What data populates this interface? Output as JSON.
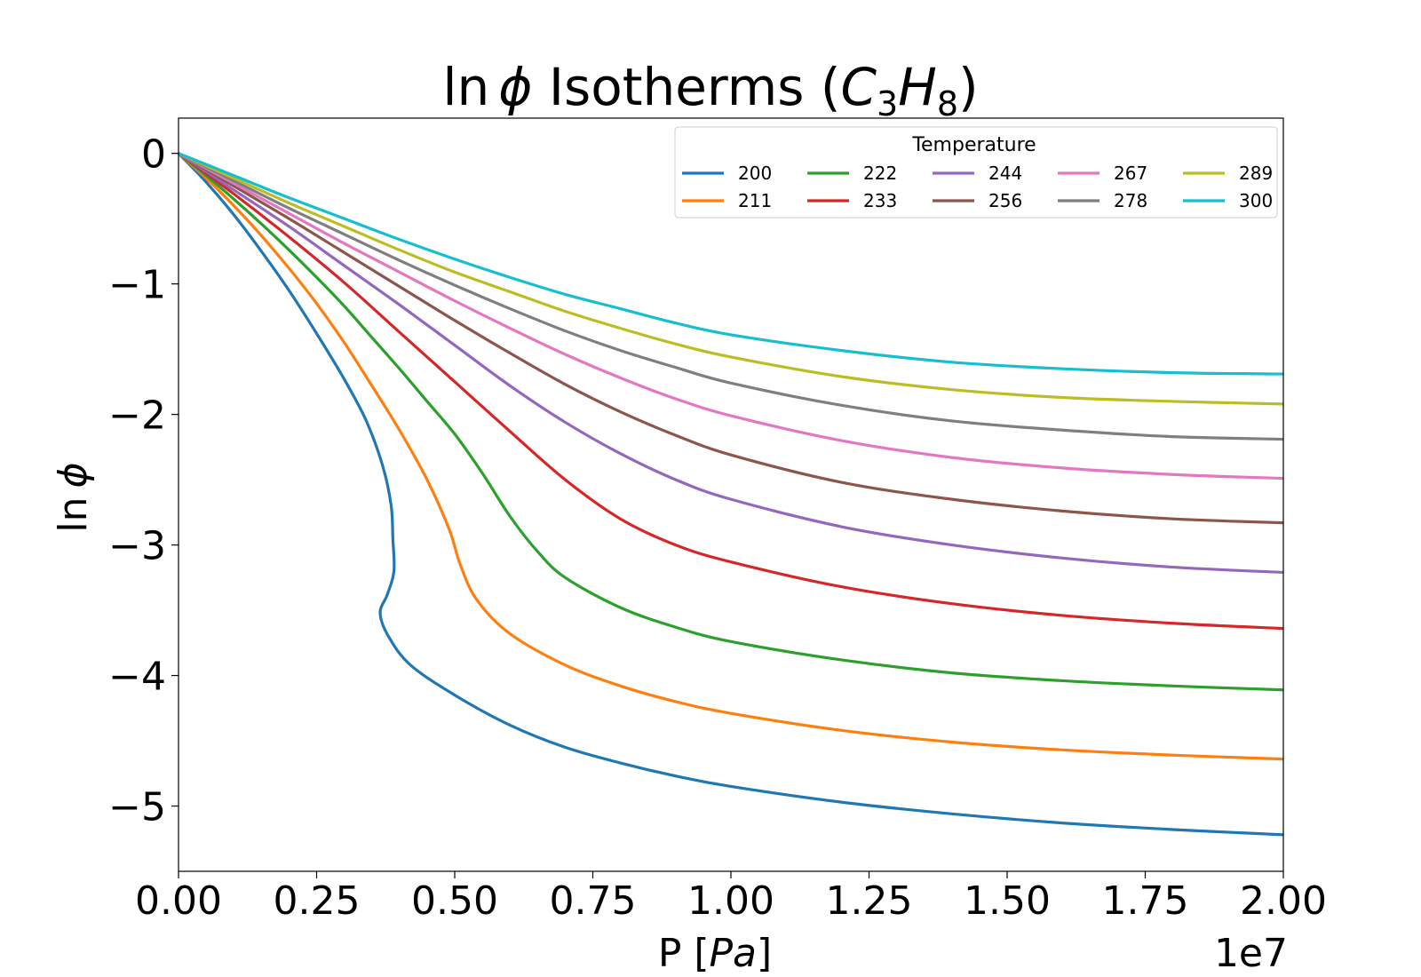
{
  "chart_data": {
    "type": "line",
    "title": "ln ϕ Isotherms (C3H8)",
    "title_parts": {
      "prefix": "ln",
      "phi": "ϕ",
      "middle": " Isotherms (",
      "c": "C",
      "sub3": "3",
      "h": "H",
      "sub8": "8",
      "suffix": ")"
    },
    "xlabel": "P [Pa]",
    "xlabel_parts": {
      "prefix": "P [",
      "unit": "Pa",
      "suffix": "]"
    },
    "ylabel": "ln ϕ",
    "ylabel_parts": {
      "prefix": "ln",
      "phi": "ϕ"
    },
    "x_offset_label": "1e7",
    "xlim": [
      0,
      20000000
    ],
    "ylim": [
      -5.5,
      0.27
    ],
    "x_ticks": [
      0,
      2500000,
      5000000,
      7500000,
      10000000,
      12500000,
      15000000,
      17500000,
      20000000
    ],
    "x_tick_labels": [
      "0.00",
      "0.25",
      "0.50",
      "0.75",
      "1.00",
      "1.25",
      "1.50",
      "1.75",
      "2.00"
    ],
    "y_ticks": [
      0,
      -1,
      -2,
      -3,
      -4,
      -5
    ],
    "y_tick_labels": [
      "0",
      "−1",
      "−2",
      "−3",
      "−4",
      "−5"
    ],
    "grid": false,
    "legend": {
      "title": "Temperature",
      "placement": "top-right",
      "columns": 5
    },
    "series": [
      {
        "name": "200",
        "color": "#1f77b4",
        "points": [
          [
            0,
            0
          ],
          [
            500000,
            -0.22
          ],
          [
            1000000,
            -0.47
          ],
          [
            1500000,
            -0.75
          ],
          [
            2000000,
            -1.05
          ],
          [
            2500000,
            -1.38
          ],
          [
            3000000,
            -1.73
          ],
          [
            3400000,
            -2.05
          ],
          [
            3700000,
            -2.4
          ],
          [
            3850000,
            -2.7
          ],
          [
            3880000,
            -2.95
          ],
          [
            3900000,
            -3.2
          ],
          [
            3780000,
            -3.38
          ],
          [
            3650000,
            -3.52
          ],
          [
            3800000,
            -3.7
          ],
          [
            4200000,
            -3.92
          ],
          [
            5000000,
            -4.15
          ],
          [
            6000000,
            -4.38
          ],
          [
            7000000,
            -4.55
          ],
          [
            8000000,
            -4.67
          ],
          [
            9000000,
            -4.77
          ],
          [
            10000000,
            -4.85
          ],
          [
            12000000,
            -4.97
          ],
          [
            14000000,
            -5.06
          ],
          [
            16000000,
            -5.13
          ],
          [
            18000000,
            -5.18
          ],
          [
            20000000,
            -5.22
          ]
        ]
      },
      {
        "name": "211",
        "color": "#ff7f0e",
        "points": [
          [
            0,
            0
          ],
          [
            500000,
            -0.19
          ],
          [
            1000000,
            -0.4
          ],
          [
            1500000,
            -0.63
          ],
          [
            2000000,
            -0.88
          ],
          [
            2500000,
            -1.15
          ],
          [
            3000000,
            -1.45
          ],
          [
            3500000,
            -1.78
          ],
          [
            4000000,
            -2.12
          ],
          [
            4500000,
            -2.5
          ],
          [
            4900000,
            -2.88
          ],
          [
            5100000,
            -3.15
          ],
          [
            5400000,
            -3.42
          ],
          [
            6000000,
            -3.68
          ],
          [
            7000000,
            -3.92
          ],
          [
            8000000,
            -4.08
          ],
          [
            9000000,
            -4.2
          ],
          [
            10000000,
            -4.29
          ],
          [
            12000000,
            -4.42
          ],
          [
            14000000,
            -4.51
          ],
          [
            16000000,
            -4.57
          ],
          [
            18000000,
            -4.61
          ],
          [
            20000000,
            -4.64
          ]
        ]
      },
      {
        "name": "222",
        "color": "#2ca02c",
        "points": [
          [
            0,
            0
          ],
          [
            500000,
            -0.17
          ],
          [
            1000000,
            -0.35
          ],
          [
            1500000,
            -0.54
          ],
          [
            2000000,
            -0.74
          ],
          [
            2500000,
            -0.95
          ],
          [
            3000000,
            -1.17
          ],
          [
            3500000,
            -1.41
          ],
          [
            4000000,
            -1.65
          ],
          [
            4500000,
            -1.9
          ],
          [
            5000000,
            -2.15
          ],
          [
            5500000,
            -2.45
          ],
          [
            6000000,
            -2.78
          ],
          [
            6500000,
            -3.05
          ],
          [
            7000000,
            -3.25
          ],
          [
            8000000,
            -3.48
          ],
          [
            9000000,
            -3.63
          ],
          [
            10000000,
            -3.74
          ],
          [
            12000000,
            -3.88
          ],
          [
            14000000,
            -3.98
          ],
          [
            16000000,
            -4.04
          ],
          [
            18000000,
            -4.08
          ],
          [
            20000000,
            -4.11
          ]
        ]
      },
      {
        "name": "233",
        "color": "#d62728",
        "points": [
          [
            0,
            0
          ],
          [
            1000000,
            -0.31
          ],
          [
            2000000,
            -0.64
          ],
          [
            3000000,
            -0.99
          ],
          [
            4000000,
            -1.37
          ],
          [
            5000000,
            -1.75
          ],
          [
            6000000,
            -2.13
          ],
          [
            7000000,
            -2.5
          ],
          [
            8000000,
            -2.8
          ],
          [
            9000000,
            -3.0
          ],
          [
            10000000,
            -3.13
          ],
          [
            12000000,
            -3.32
          ],
          [
            14000000,
            -3.45
          ],
          [
            16000000,
            -3.54
          ],
          [
            18000000,
            -3.6
          ],
          [
            20000000,
            -3.64
          ]
        ]
      },
      {
        "name": "244",
        "color": "#9467bd",
        "points": [
          [
            0,
            0
          ],
          [
            1000000,
            -0.28
          ],
          [
            2000000,
            -0.56
          ],
          [
            3000000,
            -0.86
          ],
          [
            4000000,
            -1.16
          ],
          [
            5000000,
            -1.47
          ],
          [
            6000000,
            -1.78
          ],
          [
            7000000,
            -2.06
          ],
          [
            8000000,
            -2.3
          ],
          [
            9000000,
            -2.5
          ],
          [
            10000000,
            -2.65
          ],
          [
            12000000,
            -2.86
          ],
          [
            14000000,
            -3.0
          ],
          [
            16000000,
            -3.1
          ],
          [
            18000000,
            -3.17
          ],
          [
            20000000,
            -3.21
          ]
        ]
      },
      {
        "name": "256",
        "color": "#8c564b",
        "points": [
          [
            0,
            0
          ],
          [
            1000000,
            -0.25
          ],
          [
            2000000,
            -0.5
          ],
          [
            3000000,
            -0.76
          ],
          [
            4000000,
            -1.02
          ],
          [
            5000000,
            -1.28
          ],
          [
            6000000,
            -1.53
          ],
          [
            7000000,
            -1.77
          ],
          [
            8000000,
            -1.98
          ],
          [
            9000000,
            -2.16
          ],
          [
            10000000,
            -2.31
          ],
          [
            12000000,
            -2.52
          ],
          [
            14000000,
            -2.65
          ],
          [
            16000000,
            -2.74
          ],
          [
            18000000,
            -2.8
          ],
          [
            20000000,
            -2.83
          ]
        ]
      },
      {
        "name": "267",
        "color": "#e377c2",
        "points": [
          [
            0,
            0
          ],
          [
            1000000,
            -0.23
          ],
          [
            2000000,
            -0.46
          ],
          [
            3000000,
            -0.69
          ],
          [
            4000000,
            -0.91
          ],
          [
            5000000,
            -1.13
          ],
          [
            6000000,
            -1.34
          ],
          [
            7000000,
            -1.54
          ],
          [
            8000000,
            -1.72
          ],
          [
            9000000,
            -1.88
          ],
          [
            10000000,
            -2.01
          ],
          [
            12000000,
            -2.2
          ],
          [
            14000000,
            -2.33
          ],
          [
            16000000,
            -2.41
          ],
          [
            18000000,
            -2.46
          ],
          [
            20000000,
            -2.49
          ]
        ]
      },
      {
        "name": "278",
        "color": "#7f7f7f",
        "points": [
          [
            0,
            0
          ],
          [
            1000000,
            -0.21
          ],
          [
            2000000,
            -0.42
          ],
          [
            3000000,
            -0.62
          ],
          [
            4000000,
            -0.82
          ],
          [
            5000000,
            -1.01
          ],
          [
            6000000,
            -1.19
          ],
          [
            7000000,
            -1.36
          ],
          [
            8000000,
            -1.51
          ],
          [
            9000000,
            -1.64
          ],
          [
            10000000,
            -1.76
          ],
          [
            12000000,
            -1.93
          ],
          [
            14000000,
            -2.05
          ],
          [
            16000000,
            -2.12
          ],
          [
            18000000,
            -2.17
          ],
          [
            20000000,
            -2.19
          ]
        ]
      },
      {
        "name": "289",
        "color": "#bcbd22",
        "points": [
          [
            0,
            0
          ],
          [
            1000000,
            -0.19
          ],
          [
            2000000,
            -0.38
          ],
          [
            3000000,
            -0.56
          ],
          [
            4000000,
            -0.74
          ],
          [
            5000000,
            -0.91
          ],
          [
            6000000,
            -1.06
          ],
          [
            7000000,
            -1.21
          ],
          [
            8000000,
            -1.34
          ],
          [
            9000000,
            -1.46
          ],
          [
            10000000,
            -1.56
          ],
          [
            12000000,
            -1.71
          ],
          [
            14000000,
            -1.81
          ],
          [
            16000000,
            -1.87
          ],
          [
            18000000,
            -1.9
          ],
          [
            20000000,
            -1.92
          ]
        ]
      },
      {
        "name": "300",
        "color": "#17becf",
        "points": [
          [
            0,
            0
          ],
          [
            1000000,
            -0.17
          ],
          [
            2000000,
            -0.34
          ],
          [
            3000000,
            -0.5
          ],
          [
            4000000,
            -0.66
          ],
          [
            5000000,
            -0.81
          ],
          [
            6000000,
            -0.95
          ],
          [
            7000000,
            -1.08
          ],
          [
            8000000,
            -1.19
          ],
          [
            9000000,
            -1.3
          ],
          [
            10000000,
            -1.39
          ],
          [
            12000000,
            -1.51
          ],
          [
            14000000,
            -1.6
          ],
          [
            16000000,
            -1.65
          ],
          [
            18000000,
            -1.68
          ],
          [
            20000000,
            -1.69
          ]
        ]
      }
    ]
  }
}
